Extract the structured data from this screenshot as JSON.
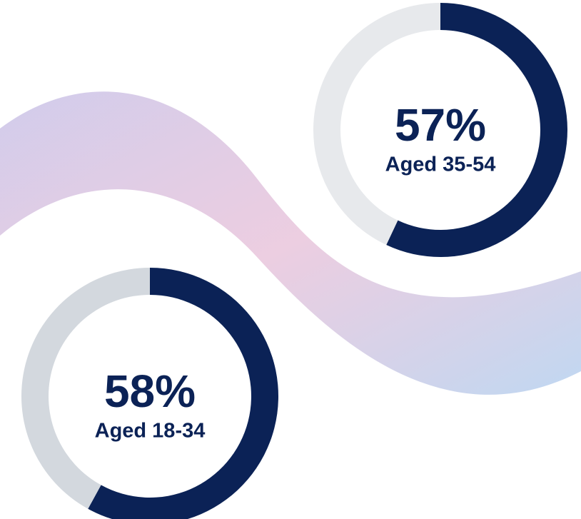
{
  "chart_data": [
    {
      "type": "donut",
      "values": [
        57,
        43
      ],
      "value_labels": [
        "57%",
        null
      ],
      "label": "Aged 35-54",
      "colors": [
        "#0b2256",
        "#e7e9ec"
      ]
    },
    {
      "type": "donut",
      "values": [
        58,
        42
      ],
      "value_labels": [
        "58%",
        null
      ],
      "label": "Aged 18-34",
      "colors": [
        "#0b2256",
        "#d3d8de"
      ]
    }
  ]
}
